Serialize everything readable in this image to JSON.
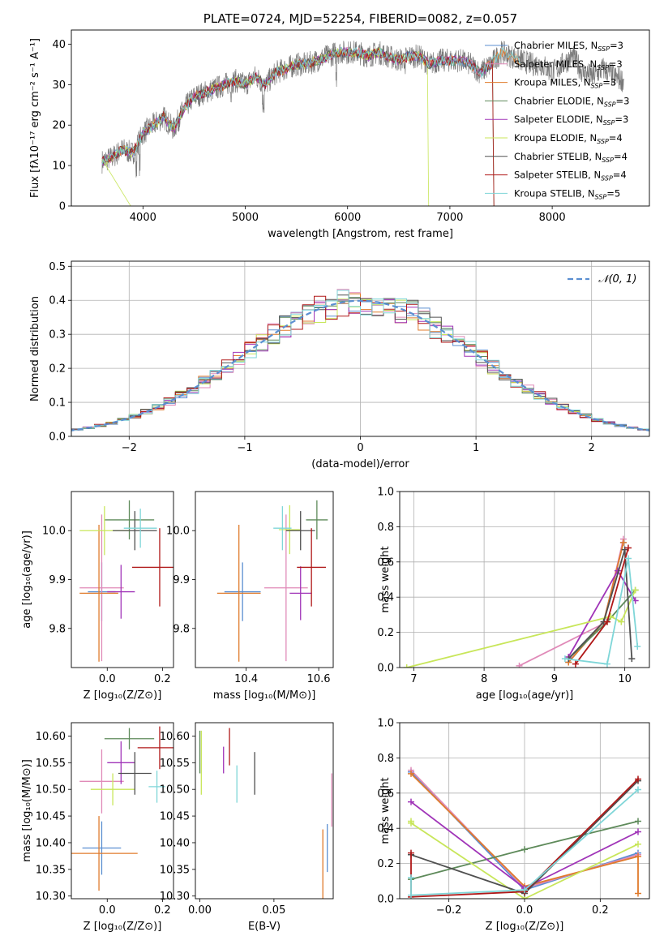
{
  "chart_data": [
    {
      "type": "line",
      "id": "spectrum",
      "title": "PLATE=0724, MJD=52254, FIBERID=0082, z=0.057",
      "xlabel": "wavelength [Angstrom, rest frame]",
      "ylabel": "Flux [fλ10⁻¹⁷ erg cm⁻² s⁻¹ A⁻¹]",
      "xlim": [
        3300,
        8950
      ],
      "ylim": [
        0,
        43.5
      ],
      "xticks": [
        4000,
        5000,
        6000,
        7000,
        8000
      ],
      "yticks": [
        0,
        10,
        20,
        30,
        40
      ],
      "grid": false,
      "legend_position": "right",
      "continuum": [
        [
          3600,
          11
        ],
        [
          3700,
          12
        ],
        [
          3800,
          14
        ],
        [
          3900,
          13
        ],
        [
          4000,
          18
        ],
        [
          4100,
          20
        ],
        [
          4200,
          22
        ],
        [
          4300,
          19
        ],
        [
          4400,
          24
        ],
        [
          4500,
          27
        ],
        [
          4600,
          28
        ],
        [
          4700,
          29
        ],
        [
          4800,
          30
        ],
        [
          4900,
          31
        ],
        [
          5000,
          30
        ],
        [
          5100,
          32
        ],
        [
          5200,
          30
        ],
        [
          5300,
          33
        ],
        [
          5400,
          34
        ],
        [
          5500,
          35
        ],
        [
          5600,
          35
        ],
        [
          5700,
          36
        ],
        [
          5800,
          37
        ],
        [
          5900,
          38
        ],
        [
          6000,
          38
        ],
        [
          6100,
          38
        ],
        [
          6200,
          37
        ],
        [
          6300,
          38
        ],
        [
          6400,
          37
        ],
        [
          6500,
          36
        ],
        [
          6600,
          37
        ],
        [
          6700,
          37
        ],
        [
          6800,
          35
        ],
        [
          6900,
          36
        ],
        [
          7000,
          36
        ],
        [
          7100,
          36
        ],
        [
          7200,
          35
        ],
        [
          7300,
          33
        ],
        [
          7400,
          35
        ],
        [
          7500,
          38
        ],
        [
          7600,
          37
        ],
        [
          7700,
          36
        ],
        [
          7800,
          35
        ],
        [
          7900,
          35
        ],
        [
          8000,
          33
        ],
        [
          8100,
          35
        ],
        [
          8200,
          37
        ],
        [
          8300,
          33
        ],
        [
          8400,
          32
        ],
        [
          8500,
          34
        ],
        [
          8600,
          32
        ],
        [
          8700,
          31
        ]
      ],
      "series": [
        {
          "name": "Chabrier MILES, N_SSP=3",
          "label_main": "Chabrier MILES, N",
          "label_sub": "SSP",
          "label_tail": "=3",
          "color": "#5b8fd1"
        },
        {
          "name": "Salpeter MILES, N_SSP=3",
          "label_main": "Salpeter MILES, N",
          "label_sub": "SSP",
          "label_tail": "=3",
          "color": "#e08ab8"
        },
        {
          "name": "Kroupa MILES, N_SSP=3",
          "label_main": "Kroupa MILES, N",
          "label_sub": "SSP",
          "label_tail": "=3",
          "color": "#e07b2c"
        },
        {
          "name": "Chabrier ELODIE, N_SSP=3",
          "label_main": "Chabrier ELODIE, N",
          "label_sub": "SSP",
          "label_tail": "=3",
          "color": "#5e8a5a"
        },
        {
          "name": "Salpeter ELODIE, N_SSP=3",
          "label_main": "Salpeter ELODIE, N",
          "label_sub": "SSP",
          "label_tail": "=3",
          "color": "#a034b8"
        },
        {
          "name": "Kroupa ELODIE, N_SSP=4",
          "label_main": "Kroupa ELODIE, N",
          "label_sub": "SSP",
          "label_tail": "=4",
          "color": "#c8e65a"
        },
        {
          "name": "Chabrier STELIB, N_SSP=4",
          "label_main": "Chabrier STELIB, N",
          "label_sub": "SSP",
          "label_tail": "=4",
          "color": "#505050"
        },
        {
          "name": "Salpeter STELIB, N_SSP=4",
          "label_main": "Salpeter STELIB, N",
          "label_sub": "SSP",
          "label_tail": "=4",
          "color": "#b01818"
        },
        {
          "name": "Kroupa STELIB, N_SSP=5",
          "label_main": "Kroupa STELIB, N",
          "label_sub": "SSP",
          "label_tail": "=5",
          "color": "#7fd6d8"
        }
      ]
    },
    {
      "type": "histogram",
      "id": "residuals",
      "xlabel": "(data-model)/error",
      "ylabel": "Normed distribution",
      "xlim": [
        -2.5,
        2.5
      ],
      "ylim": [
        0,
        0.515
      ],
      "xticks": [
        -2,
        -1,
        0,
        1,
        2
      ],
      "yticks": [
        0.0,
        0.1,
        0.2,
        0.3,
        0.4,
        0.5
      ],
      "grid": true,
      "legend_position": "top-right",
      "reference_curve": {
        "label": "𝒩(0, 1)",
        "mean": 0,
        "sigma": 1,
        "color": "#5b8fd1"
      },
      "bin_width": 0.1
    },
    {
      "type": "errorbar",
      "id": "age_vs_Z",
      "xlabel": "Z [log₁₀(Z/Z⊙)]",
      "ylabel": "age  [log₁₀(age/yr)]",
      "xlim": [
        -0.13,
        0.24
      ],
      "ylim": [
        9.72,
        10.08
      ],
      "xticks": [
        0.0,
        0.2
      ],
      "yticks": [
        9.8,
        9.9,
        10.0
      ],
      "points": [
        {
          "x": -0.02,
          "y": 9.875,
          "xe": 0.05,
          "ye": 0.06,
          "color": "#5b8fd1"
        },
        {
          "x": -0.02,
          "y": 9.883,
          "xe": 0.08,
          "ye": 0.15,
          "color": "#e08ab8"
        },
        {
          "x": -0.03,
          "y": 9.872,
          "xe": 0.07,
          "ye": 0.14,
          "color": "#e07b2c"
        },
        {
          "x": 0.08,
          "y": 10.022,
          "xe": 0.09,
          "ye": 0.04,
          "color": "#5e8a5a"
        },
        {
          "x": 0.05,
          "y": 9.875,
          "xe": 0.05,
          "ye": 0.055,
          "color": "#a034b8"
        },
        {
          "x": -0.01,
          "y": 10.0,
          "xe": 0.09,
          "ye": 0.05,
          "color": "#c8e65a"
        },
        {
          "x": 0.1,
          "y": 10.0,
          "xe": 0.08,
          "ye": 0.04,
          "color": "#505050"
        },
        {
          "x": 0.19,
          "y": 9.925,
          "xe": 0.1,
          "ye": 0.08,
          "color": "#b01818"
        },
        {
          "x": 0.12,
          "y": 10.005,
          "xe": 0.06,
          "ye": 0.04,
          "color": "#7fd6d8"
        }
      ]
    },
    {
      "type": "errorbar",
      "id": "age_vs_mass",
      "xlabel": "mass [log₁₀(M/M⊙)]",
      "ylabel": "",
      "xlim": [
        10.26,
        10.64
      ],
      "ylim": [
        9.72,
        10.08
      ],
      "xticks": [
        10.4,
        10.6
      ],
      "yticks": [
        9.8,
        9.9,
        10.0
      ],
      "points": [
        {
          "x": 10.39,
          "y": 9.875,
          "xe": 0.05,
          "ye": 0.06,
          "color": "#5b8fd1"
        },
        {
          "x": 10.51,
          "y": 9.883,
          "xe": 0.06,
          "ye": 0.15,
          "color": "#e08ab8"
        },
        {
          "x": 10.38,
          "y": 9.872,
          "xe": 0.06,
          "ye": 0.14,
          "color": "#e07b2c"
        },
        {
          "x": 10.595,
          "y": 10.022,
          "xe": 0.03,
          "ye": 0.04,
          "color": "#5e8a5a"
        },
        {
          "x": 10.55,
          "y": 9.872,
          "xe": 0.03,
          "ye": 0.055,
          "color": "#a034b8"
        },
        {
          "x": 10.52,
          "y": 10.002,
          "xe": 0.03,
          "ye": 0.05,
          "color": "#c8e65a"
        },
        {
          "x": 10.55,
          "y": 10.0,
          "xe": 0.04,
          "ye": 0.04,
          "color": "#505050"
        },
        {
          "x": 10.58,
          "y": 9.925,
          "xe": 0.04,
          "ye": 0.08,
          "color": "#b01818"
        },
        {
          "x": 10.5,
          "y": 10.005,
          "xe": 0.025,
          "ye": 0.045,
          "color": "#7fd6d8"
        }
      ]
    },
    {
      "type": "line",
      "id": "mass_weight_vs_age",
      "xlabel": "age  [log₁₀(age/yr)]",
      "ylabel": "mass weight",
      "xlim": [
        6.8,
        10.35
      ],
      "ylim": [
        0,
        1.0
      ],
      "xticks": [
        7,
        8,
        9,
        10
      ],
      "yticks": [
        0.0,
        0.2,
        0.4,
        0.6,
        0.8,
        1.0
      ],
      "grid": true,
      "series": [
        {
          "color": "#5b8fd1",
          "x": [
            9.2,
            9.7,
            9.98
          ],
          "y": [
            0.03,
            0.26,
            0.71
          ]
        },
        {
          "color": "#e08ab8",
          "x": [
            8.5,
            9.7,
            9.98
          ],
          "y": [
            0.01,
            0.25,
            0.73
          ]
        },
        {
          "color": "#e07b2c",
          "x": [
            9.2,
            9.7,
            9.98
          ],
          "y": [
            0.03,
            0.26,
            0.71
          ]
        },
        {
          "color": "#5e8a5a",
          "x": [
            9.2,
            9.75,
            10.15
          ],
          "y": [
            0.05,
            0.26,
            0.44
          ]
        },
        {
          "color": "#a034b8",
          "x": [
            9.2,
            9.9,
            10.15
          ],
          "y": [
            0.06,
            0.55,
            0.38
          ]
        },
        {
          "color": "#c8e65a",
          "x": [
            6.9,
            9.8,
            9.95,
            10.15
          ],
          "y": [
            0.0,
            0.29,
            0.26,
            0.44
          ]
        },
        {
          "color": "#505050",
          "x": [
            9.2,
            9.7,
            10.0,
            10.1
          ],
          "y": [
            0.05,
            0.26,
            0.67,
            0.05
          ]
        },
        {
          "color": "#b01818",
          "x": [
            9.3,
            9.75,
            10.05
          ],
          "y": [
            0.02,
            0.26,
            0.68
          ]
        },
        {
          "color": "#7fd6d8",
          "x": [
            9.15,
            9.75,
            10.05,
            10.18
          ],
          "y": [
            0.05,
            0.02,
            0.62,
            0.12
          ]
        }
      ]
    },
    {
      "type": "errorbar",
      "id": "mass_vs_Z",
      "xlabel": "Z [log₁₀(Z/Z⊙)]",
      "ylabel": "mass [log₁₀(M/M⊙)]",
      "xlim": [
        -0.13,
        0.24
      ],
      "ylim": [
        10.295,
        10.625
      ],
      "xticks": [
        0.0,
        0.2
      ],
      "yticks": [
        10.3,
        10.35,
        10.4,
        10.45,
        10.5,
        10.55,
        10.6
      ],
      "points": [
        {
          "x": -0.02,
          "y": 10.39,
          "xe": 0.07,
          "ye": 0.05,
          "color": "#5b8fd1"
        },
        {
          "x": -0.02,
          "y": 10.515,
          "xe": 0.08,
          "ye": 0.06,
          "color": "#e08ab8"
        },
        {
          "x": -0.03,
          "y": 10.38,
          "xe": 0.14,
          "ye": 0.07,
          "color": "#e07b2c"
        },
        {
          "x": 0.08,
          "y": 10.595,
          "xe": 0.09,
          "ye": 0.02,
          "color": "#5e8a5a"
        },
        {
          "x": 0.05,
          "y": 10.55,
          "xe": 0.05,
          "ye": 0.04,
          "color": "#a034b8"
        },
        {
          "x": 0.02,
          "y": 10.5,
          "xe": 0.08,
          "ye": 0.03,
          "color": "#c8e65a"
        },
        {
          "x": 0.1,
          "y": 10.53,
          "xe": 0.06,
          "ye": 0.04,
          "color": "#505050"
        },
        {
          "x": 0.19,
          "y": 10.578,
          "xe": 0.08,
          "ye": 0.04,
          "color": "#b01818"
        },
        {
          "x": 0.18,
          "y": 10.505,
          "xe": 0.03,
          "ye": 0.03,
          "color": "#7fd6d8"
        }
      ]
    },
    {
      "type": "errorbar",
      "id": "mass_vs_ebv",
      "xlabel": "E(B-V)",
      "ylabel": "",
      "xlim": [
        -0.003,
        0.09
      ],
      "ylim": [
        10.295,
        10.625
      ],
      "xticks": [
        0.0,
        0.05
      ],
      "yticks": [
        10.3,
        10.35,
        10.4,
        10.45,
        10.5,
        10.55,
        10.6
      ],
      "points": [
        {
          "x": 0.086,
          "y": 10.39,
          "xe": 0,
          "ye": 0.045,
          "color": "#5b8fd1"
        },
        {
          "x": 0.089,
          "y": 10.48,
          "xe": 0,
          "ye": 0.05,
          "color": "#e08ab8"
        },
        {
          "x": 0.083,
          "y": 10.36,
          "xe": 0,
          "ye": 0.065,
          "color": "#e07b2c"
        },
        {
          "x": 0.0,
          "y": 10.57,
          "xe": 0,
          "ye": 0.04,
          "color": "#5e8a5a"
        },
        {
          "x": 0.016,
          "y": 10.555,
          "xe": 0,
          "ye": 0.025,
          "color": "#a034b8"
        },
        {
          "x": 0.001,
          "y": 10.55,
          "xe": 0,
          "ye": 0.06,
          "color": "#c8e65a"
        },
        {
          "x": 0.037,
          "y": 10.53,
          "xe": 0,
          "ye": 0.04,
          "color": "#505050"
        },
        {
          "x": 0.02,
          "y": 10.58,
          "xe": 0,
          "ye": 0.035,
          "color": "#b01818"
        },
        {
          "x": 0.025,
          "y": 10.51,
          "xe": 0,
          "ye": 0.035,
          "color": "#7fd6d8"
        }
      ]
    },
    {
      "type": "line",
      "id": "mass_weight_vs_Z",
      "xlabel": "Z [log₁₀(Z/Z⊙)]",
      "ylabel": "mass weight",
      "xlim": [
        -0.33,
        0.33
      ],
      "ylim": [
        0,
        1.0
      ],
      "xticks": [
        -0.2,
        0.0,
        0.2
      ],
      "yticks": [
        0.0,
        0.2,
        0.4,
        0.6,
        0.8,
        1.0
      ],
      "grid": true,
      "series": [
        {
          "color": "#5b8fd1",
          "x": [
            -0.3,
            0.0,
            0.3
          ],
          "y": [
            0.72,
            0.05,
            0.26
          ]
        },
        {
          "color": "#e08ab8",
          "x": [
            -0.3,
            0.0,
            0.3
          ],
          "y": [
            0.73,
            0.06,
            0.25
          ]
        },
        {
          "color": "#e07b2c",
          "x": [
            -0.3,
            0.0,
            0.3,
            0.3
          ],
          "y": [
            0.71,
            0.07,
            0.24,
            0.03
          ]
        },
        {
          "color": "#5e8a5a",
          "x": [
            -0.3,
            0.0,
            0.3
          ],
          "y": [
            0.11,
            0.28,
            0.44
          ]
        },
        {
          "color": "#a034b8",
          "x": [
            -0.3,
            0.0,
            0.3
          ],
          "y": [
            0.55,
            0.06,
            0.38
          ]
        },
        {
          "color": "#c8e65a",
          "x": [
            -0.3,
            -0.3,
            0.0,
            0.3
          ],
          "y": [
            0.44,
            0.43,
            0.0,
            0.31
          ]
        },
        {
          "color": "#505050",
          "x": [
            -0.3,
            0.0,
            0.3
          ],
          "y": [
            0.25,
            0.03,
            0.67
          ]
        },
        {
          "color": "#b01818",
          "x": [
            -0.3,
            -0.3,
            0.0,
            0.3
          ],
          "y": [
            0.26,
            0.01,
            0.04,
            0.68
          ]
        },
        {
          "color": "#7fd6d8",
          "x": [
            -0.3,
            -0.3,
            0.0,
            0.3
          ],
          "y": [
            0.12,
            0.02,
            0.05,
            0.62
          ]
        }
      ]
    }
  ]
}
